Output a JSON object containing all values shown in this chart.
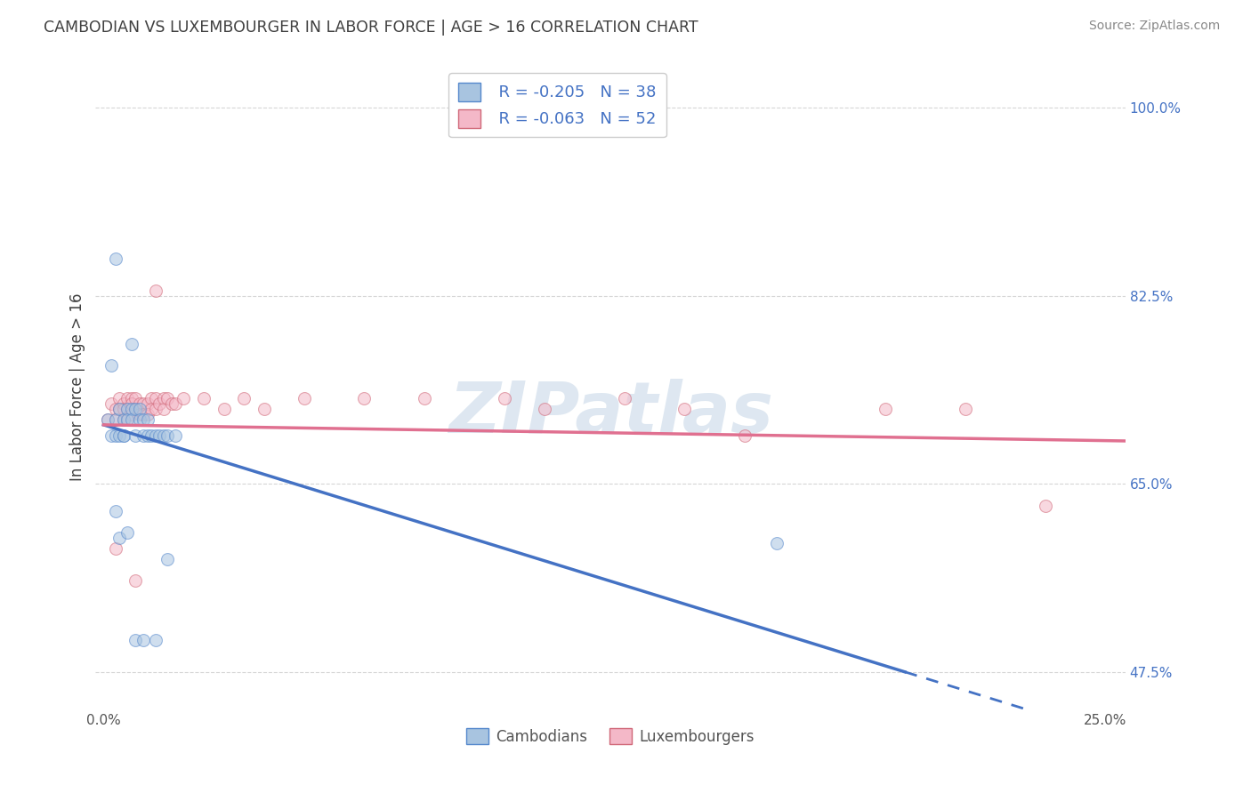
{
  "title": "CAMBODIAN VS LUXEMBOURGER IN LABOR FORCE | AGE > 16 CORRELATION CHART",
  "source": "Source: ZipAtlas.com",
  "ylabel": "In Labor Force | Age > 16",
  "xlim": [
    -0.002,
    0.255
  ],
  "ylim": [
    0.44,
    1.04
  ],
  "xtick_positions": [
    0.0,
    0.05,
    0.1,
    0.15,
    0.2,
    0.25
  ],
  "xticklabels": [
    "0.0%",
    "",
    "",
    "",
    "",
    "25.0%"
  ],
  "ytick_positions": [
    0.475,
    0.65,
    0.825,
    1.0
  ],
  "ytick_labels": [
    "47.5%",
    "65.0%",
    "82.5%",
    "100.0%"
  ],
  "color_cambodian_fill": "#a8c4e0",
  "color_cambodian_edge": "#5588cc",
  "color_luxembourger_fill": "#f4b8c8",
  "color_luxembourger_edge": "#d06878",
  "color_line_cambodian": "#4472c4",
  "color_line_luxembourger": "#e07090",
  "color_title": "#404040",
  "color_source": "#888888",
  "color_ytick": "#4472c4",
  "color_xtick": "#555555",
  "background_color": "#ffffff",
  "grid_color": "#cccccc",
  "watermark_text": "ZIPatlas",
  "watermark_color": "#c8d8e8",
  "scatter_size": 100,
  "scatter_alpha": 0.55,
  "legend_r1": "R = -0.205",
  "legend_n1": "N = 38",
  "legend_r2": "R = -0.063",
  "legend_n2": "N = 52",
  "cambodian_x": [
    0.001,
    0.002,
    0.002,
    0.003,
    0.003,
    0.003,
    0.004,
    0.004,
    0.005,
    0.005,
    0.005,
    0.006,
    0.006,
    0.007,
    0.007,
    0.007,
    0.008,
    0.008,
    0.009,
    0.009,
    0.01,
    0.01,
    0.011,
    0.011,
    0.012,
    0.013,
    0.014,
    0.015,
    0.016,
    0.018,
    0.003,
    0.004,
    0.006,
    0.008,
    0.01,
    0.013,
    0.016,
    0.168
  ],
  "cambodian_y": [
    0.71,
    0.76,
    0.695,
    0.86,
    0.71,
    0.695,
    0.72,
    0.695,
    0.71,
    0.695,
    0.695,
    0.72,
    0.71,
    0.78,
    0.72,
    0.71,
    0.72,
    0.695,
    0.72,
    0.71,
    0.71,
    0.695,
    0.71,
    0.695,
    0.695,
    0.695,
    0.695,
    0.695,
    0.695,
    0.695,
    0.625,
    0.6,
    0.605,
    0.505,
    0.505,
    0.505,
    0.58,
    0.595
  ],
  "luxembourger_x": [
    0.001,
    0.002,
    0.003,
    0.003,
    0.004,
    0.004,
    0.005,
    0.005,
    0.005,
    0.006,
    0.006,
    0.006,
    0.007,
    0.007,
    0.007,
    0.008,
    0.008,
    0.009,
    0.009,
    0.01,
    0.01,
    0.011,
    0.011,
    0.012,
    0.012,
    0.013,
    0.013,
    0.014,
    0.015,
    0.015,
    0.016,
    0.017,
    0.018,
    0.02,
    0.025,
    0.03,
    0.035,
    0.04,
    0.05,
    0.065,
    0.08,
    0.1,
    0.11,
    0.13,
    0.145,
    0.16,
    0.195,
    0.215,
    0.235,
    0.003,
    0.008,
    0.013
  ],
  "luxembourger_y": [
    0.71,
    0.725,
    0.72,
    0.71,
    0.73,
    0.72,
    0.725,
    0.72,
    0.71,
    0.73,
    0.72,
    0.71,
    0.73,
    0.725,
    0.715,
    0.73,
    0.72,
    0.725,
    0.715,
    0.725,
    0.715,
    0.725,
    0.715,
    0.73,
    0.72,
    0.73,
    0.72,
    0.725,
    0.73,
    0.72,
    0.73,
    0.725,
    0.725,
    0.73,
    0.73,
    0.72,
    0.73,
    0.72,
    0.73,
    0.73,
    0.73,
    0.73,
    0.72,
    0.73,
    0.72,
    0.695,
    0.72,
    0.72,
    0.63,
    0.59,
    0.56,
    0.83
  ],
  "cam_line_x0": 0.0,
  "cam_line_y0": 0.705,
  "cam_line_x1": 0.2,
  "cam_line_y1": 0.475,
  "cam_line_dash_x0": 0.2,
  "cam_line_dash_x1": 0.255,
  "lux_line_x0": 0.0,
  "lux_line_y0": 0.705,
  "lux_line_x1": 0.255,
  "lux_line_y1": 0.69
}
